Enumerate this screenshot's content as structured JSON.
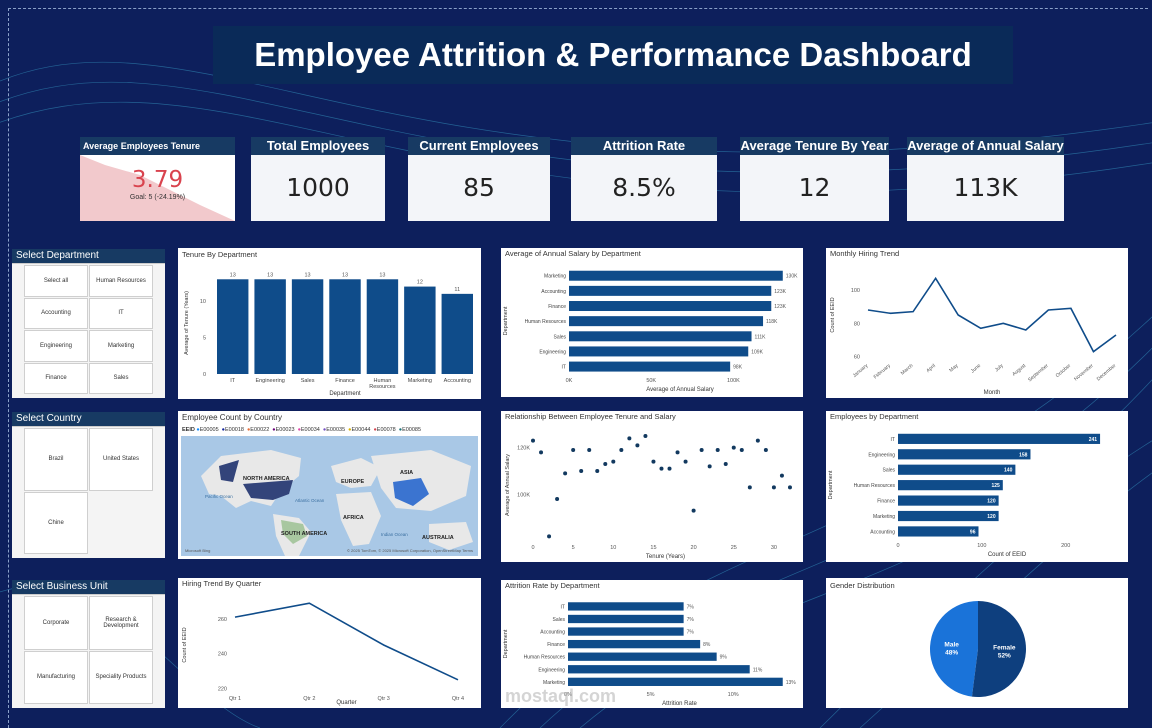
{
  "title": "Employee Attrition & Performance Dashboard",
  "kpis": {
    "tenure_card": {
      "label": "Average Employees Tenure",
      "value": "3.79",
      "goal": "Goal: 5 (-24.19%)"
    },
    "total": {
      "label": "Total Employees",
      "value": "1000"
    },
    "current": {
      "label": "Current Employees",
      "value": "85"
    },
    "attrition": {
      "label": "Attrition Rate",
      "value": "8.5%"
    },
    "tenure_year": {
      "label": "Average Tenure By Year",
      "value": "12"
    },
    "salary": {
      "label": "Average of Annual Salary",
      "value": "113K"
    }
  },
  "slicers": {
    "department": {
      "label": "Select Department",
      "options": [
        "Select all",
        "Human Resources",
        "Accounting",
        "IT",
        "Engineering",
        "Marketing",
        "Finance",
        "Sales"
      ]
    },
    "country": {
      "label": "Select Country",
      "options": [
        "Brazil",
        "United States",
        "Chine"
      ]
    },
    "business_unit": {
      "label": "Select Business Unit",
      "options": [
        "Corporate",
        "Research & Development",
        "Manufacturing",
        "Speciality Products"
      ]
    }
  },
  "map": {
    "title": "Employee Count by Country",
    "legend_title": "EEID",
    "legend_items": [
      "E00005",
      "E00018",
      "E00022",
      "E00023",
      "E00034",
      "E00035",
      "E00044",
      "E00078",
      "E00085"
    ],
    "legend_colors": [
      "#118dff",
      "#12239e",
      "#e66c37",
      "#6b007b",
      "#e044a7",
      "#744ec2",
      "#d9b300",
      "#d64550",
      "#197278"
    ],
    "continents": [
      "NORTH AMERICA",
      "EUROPE",
      "ASIA",
      "AFRICA",
      "SOUTH AMERICA",
      "AUSTRALIA"
    ],
    "oceans": [
      "Pacific Ocean",
      "Atlantic Ocean",
      "Indian Ocean"
    ],
    "attribution": "© 2025 TomTom, © 2025 Microsoft Corporation, OpenStreetMap Terms",
    "logo": "Microsoft Bing"
  },
  "colors": {
    "navy": "#173a63",
    "bar": "#0f4c8a",
    "bg": "#0d1f5c",
    "kpi_red": "#d9434e"
  },
  "watermark": "mostaql.com",
  "chart_data": [
    {
      "id": "tenure_by_department",
      "type": "bar",
      "title": "Tenure By Department",
      "xlabel": "Department",
      "ylabel": "Average of Tenure (Years)",
      "categories": [
        "IT",
        "Engineering",
        "Sales",
        "Finance",
        "Human Resources",
        "Marketing",
        "Accounting"
      ],
      "values": [
        13,
        13,
        13,
        13,
        13,
        12,
        11
      ],
      "yticks": [
        0,
        5,
        10
      ],
      "ylim": [
        0,
        14
      ]
    },
    {
      "id": "salary_by_department",
      "type": "bar",
      "orientation": "horizontal",
      "title": "Average of Annual Salary by Department",
      "xlabel": "Average of Annual Salary",
      "ylabel": "Department",
      "categories": [
        "Marketing",
        "Accounting",
        "Finance",
        "Human Resources",
        "Sales",
        "Engineering",
        "IT"
      ],
      "values": [
        130,
        123,
        123,
        118,
        111,
        109,
        98
      ],
      "labels": [
        "130K",
        "123K",
        "123K",
        "118K",
        "111K",
        "109K",
        "98K"
      ],
      "xticks": [
        "0K",
        "50K",
        "100K"
      ],
      "xlim": [
        0,
        135
      ]
    },
    {
      "id": "monthly_hiring",
      "type": "line",
      "title": "Monthly Hiring Trend",
      "xlabel": "Month",
      "ylabel": "Count of EEID",
      "categories": [
        "January",
        "February",
        "March",
        "April",
        "May",
        "June",
        "July",
        "August",
        "September",
        "October",
        "November",
        "December"
      ],
      "values": [
        88,
        86,
        87,
        107,
        85,
        77,
        80,
        76,
        88,
        89,
        63,
        73
      ],
      "yticks": [
        60,
        80,
        100
      ],
      "ylim": [
        58,
        112
      ]
    },
    {
      "id": "tenure_vs_salary",
      "type": "scatter",
      "title": "Relationship Between Employee Tenure and Salary",
      "xlabel": "Tenure (Years)",
      "ylabel": "Average of Annual Salary",
      "x": [
        0,
        1,
        2,
        3,
        4,
        5,
        6,
        7,
        8,
        9,
        10,
        11,
        12,
        13,
        14,
        15,
        16,
        17,
        18,
        19,
        20,
        21,
        22,
        23,
        24,
        25,
        26,
        27,
        28,
        29,
        30,
        31,
        32
      ],
      "y": [
        123,
        118,
        82,
        98,
        109,
        119,
        110,
        119,
        110,
        113,
        114,
        119,
        124,
        121,
        125,
        114,
        111,
        111,
        118,
        114,
        93,
        119,
        112,
        119,
        113,
        120,
        119,
        103,
        123,
        119,
        103,
        108,
        103
      ],
      "yticks": [
        100,
        120
      ],
      "ylim": [
        80,
        128
      ],
      "xticks": [
        0,
        5,
        10,
        15,
        20,
        25,
        30
      ],
      "xlim": [
        0,
        33
      ]
    },
    {
      "id": "employees_by_department",
      "type": "bar",
      "orientation": "horizontal",
      "title": "Employees by Department",
      "xlabel": "Count of EEID",
      "ylabel": "Department",
      "categories": [
        "IT",
        "Engineering",
        "Sales",
        "Human Resources",
        "Finance",
        "Marketing",
        "Accounting"
      ],
      "values": [
        241,
        158,
        140,
        125,
        120,
        120,
        96
      ],
      "xticks": [
        0,
        100,
        200
      ],
      "xlim": [
        0,
        260
      ]
    },
    {
      "id": "hiring_by_quarter",
      "type": "line",
      "title": "Hiring Trend By Quarter",
      "xlabel": "Quarter",
      "ylabel": "Count of EEID",
      "categories": [
        "Qtr 1",
        "Qtr 2",
        "Qtr 3",
        "Qtr 4"
      ],
      "values": [
        261,
        269,
        245,
        225
      ],
      "yticks": [
        220,
        240,
        260
      ],
      "ylim": [
        218,
        272
      ]
    },
    {
      "id": "attrition_by_department",
      "type": "bar",
      "orientation": "horizontal",
      "title": "Attrition Rate by Department",
      "xlabel": "Attrition Rate",
      "ylabel": "Department",
      "categories": [
        "IT",
        "Sales",
        "Accounting",
        "Finance",
        "Human Resources",
        "Engineering",
        "Marketing"
      ],
      "values": [
        7,
        7,
        7,
        8,
        9,
        11,
        13
      ],
      "labels": [
        "7%",
        "7%",
        "7%",
        "8%",
        "9%",
        "11%",
        "13%"
      ],
      "xticks": [
        "0%",
        "5%",
        "10%"
      ],
      "xlim": [
        0,
        13.5
      ]
    },
    {
      "id": "gender_distribution",
      "type": "pie",
      "title": "Gender Distribution",
      "categories": [
        "Male",
        "Female"
      ],
      "values": [
        48,
        52
      ],
      "labels": [
        "48%",
        "52%"
      ],
      "colors": [
        "#1a73d9",
        "#0e3f7e"
      ]
    }
  ]
}
